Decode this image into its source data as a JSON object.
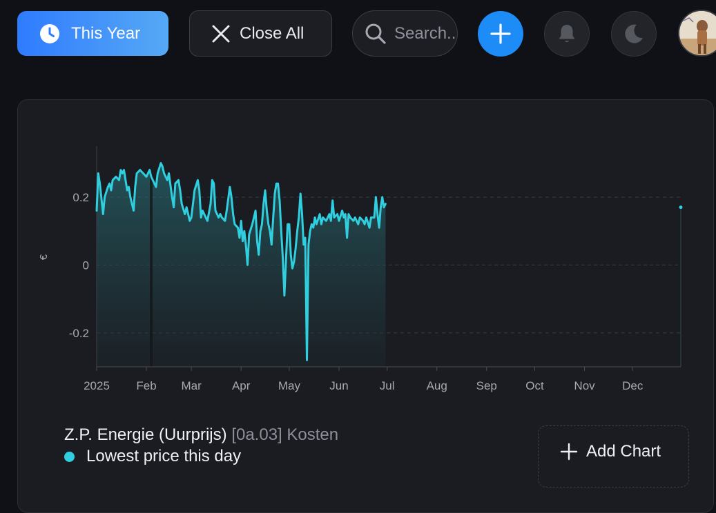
{
  "toolbar": {
    "period_label": "This Year",
    "close_all_label": "Close All",
    "search_placeholder": "Search..."
  },
  "icons": {
    "period": "clock-icon",
    "close": "close-icon",
    "search": "search-icon",
    "add": "plus-icon",
    "notifications": "bell-icon",
    "theme": "moon-icon",
    "user": "avatar"
  },
  "colors": {
    "primary": "#2f7bff",
    "series": "#2fcfdf",
    "background": "#101116",
    "card": "#1b1c21"
  },
  "chart_data": {
    "type": "area",
    "ylabel": "€",
    "yticks": [
      "0.2",
      "0",
      "-0.2"
    ],
    "xticks": [
      "2025",
      "Feb",
      "Mar",
      "Apr",
      "May",
      "Jun",
      "Jul",
      "Aug",
      "Sep",
      "Oct",
      "Nov",
      "Dec"
    ],
    "ylim": [
      -0.3,
      0.35
    ],
    "x_domain": [
      "2025-01-01",
      "2025-12-31"
    ],
    "grid": "horizontal dashed at ±0.2, solid at 0",
    "series": [
      {
        "name": "Lowest price this day",
        "color": "#2fcfdf",
        "points": [
          [
            "2025-01-01",
            0.16
          ],
          [
            "2025-01-02",
            0.27
          ],
          [
            "2025-01-03",
            0.24
          ],
          [
            "2025-01-05",
            0.15
          ],
          [
            "2025-01-06",
            0.2
          ],
          [
            "2025-01-08",
            0.23
          ],
          [
            "2025-01-09",
            0.24
          ],
          [
            "2025-01-10",
            0.22
          ],
          [
            "2025-01-11",
            0.25
          ],
          [
            "2025-01-13",
            0.26
          ],
          [
            "2025-01-15",
            0.25
          ],
          [
            "2025-01-16",
            0.28
          ],
          [
            "2025-01-17",
            0.27
          ],
          [
            "2025-01-18",
            0.28
          ],
          [
            "2025-01-20",
            0.22
          ],
          [
            "2025-01-21",
            0.23
          ],
          [
            "2025-01-22",
            0.2
          ],
          [
            "2025-01-24",
            0.16
          ],
          [
            "2025-01-25",
            0.23
          ],
          [
            "2025-01-26",
            0.27
          ],
          [
            "2025-01-28",
            0.28
          ],
          [
            "2025-01-30",
            0.27
          ],
          [
            "2025-02-01",
            0.26
          ],
          [
            "2025-02-03",
            0.28
          ],
          [
            "2025-02-04",
            0.26
          ],
          [
            "2025-02-05",
            0.25
          ],
          [
            "2025-02-07",
            0.23
          ],
          [
            "2025-02-08",
            0.27
          ],
          [
            "2025-02-10",
            0.3
          ],
          [
            "2025-02-11",
            0.29
          ],
          [
            "2025-02-12",
            0.27
          ],
          [
            "2025-02-14",
            0.25
          ],
          [
            "2025-02-15",
            0.27
          ],
          [
            "2025-02-17",
            0.2
          ],
          [
            "2025-02-18",
            0.17
          ],
          [
            "2025-02-19",
            0.24
          ],
          [
            "2025-02-21",
            0.25
          ],
          [
            "2025-02-22",
            0.22
          ],
          [
            "2025-02-23",
            0.18
          ],
          [
            "2025-02-25",
            0.15
          ],
          [
            "2025-02-26",
            0.17
          ],
          [
            "2025-02-28",
            0.13
          ],
          [
            "2025-03-01",
            0.14
          ],
          [
            "2025-03-03",
            0.22
          ],
          [
            "2025-03-05",
            0.25
          ],
          [
            "2025-03-06",
            0.22
          ],
          [
            "2025-03-07",
            0.14
          ],
          [
            "2025-03-08",
            0.16
          ],
          [
            "2025-03-10",
            0.14
          ],
          [
            "2025-03-11",
            0.13
          ],
          [
            "2025-03-13",
            0.18
          ],
          [
            "2025-03-14",
            0.25
          ],
          [
            "2025-03-15",
            0.24
          ],
          [
            "2025-03-16",
            0.16
          ],
          [
            "2025-03-18",
            0.14
          ],
          [
            "2025-03-19",
            0.15
          ],
          [
            "2025-03-20",
            0.14
          ],
          [
            "2025-03-22",
            0.13
          ],
          [
            "2025-03-23",
            0.16
          ],
          [
            "2025-03-25",
            0.23
          ],
          [
            "2025-03-26",
            0.2
          ],
          [
            "2025-03-27",
            0.15
          ],
          [
            "2025-03-28",
            0.12
          ],
          [
            "2025-03-30",
            0.11
          ],
          [
            "2025-03-31",
            0.08
          ],
          [
            "2025-04-01",
            0.13
          ],
          [
            "2025-04-02",
            0.07
          ],
          [
            "2025-04-03",
            0.1
          ],
          [
            "2025-04-04",
            0.06
          ],
          [
            "2025-04-05",
            0.0
          ],
          [
            "2025-04-06",
            0.09
          ],
          [
            "2025-04-08",
            0.12
          ],
          [
            "2025-04-09",
            0.14
          ],
          [
            "2025-04-10",
            0.16
          ],
          [
            "2025-04-11",
            0.07
          ],
          [
            "2025-04-12",
            0.03
          ],
          [
            "2025-04-13",
            0.1
          ],
          [
            "2025-04-14",
            0.12
          ],
          [
            "2025-04-15",
            0.18
          ],
          [
            "2025-04-16",
            0.22
          ],
          [
            "2025-04-17",
            0.16
          ],
          [
            "2025-04-18",
            0.12
          ],
          [
            "2025-04-19",
            0.1
          ],
          [
            "2025-04-20",
            0.06
          ],
          [
            "2025-04-21",
            0.14
          ],
          [
            "2025-04-22",
            0.21
          ],
          [
            "2025-04-23",
            0.24
          ],
          [
            "2025-04-24",
            0.24
          ],
          [
            "2025-04-25",
            0.19
          ],
          [
            "2025-04-26",
            0.1
          ],
          [
            "2025-04-27",
            0.02
          ],
          [
            "2025-04-28",
            -0.09
          ],
          [
            "2025-04-29",
            0.02
          ],
          [
            "2025-04-30",
            0.12
          ],
          [
            "2025-05-01",
            0.12
          ],
          [
            "2025-05-02",
            0.03
          ],
          [
            "2025-05-03",
            -0.01
          ],
          [
            "2025-05-04",
            0.01
          ],
          [
            "2025-05-05",
            0.05
          ],
          [
            "2025-05-06",
            0.1
          ],
          [
            "2025-05-07",
            0.14
          ],
          [
            "2025-05-08",
            0.21
          ],
          [
            "2025-05-09",
            0.15
          ],
          [
            "2025-05-10",
            0.06
          ],
          [
            "2025-05-11",
            0.08
          ],
          [
            "2025-05-12",
            -0.28
          ],
          [
            "2025-05-13",
            0.06
          ],
          [
            "2025-05-14",
            0.1
          ],
          [
            "2025-05-15",
            0.12
          ],
          [
            "2025-05-16",
            0.11
          ],
          [
            "2025-05-17",
            0.14
          ],
          [
            "2025-05-18",
            0.12
          ],
          [
            "2025-05-20",
            0.15
          ],
          [
            "2025-05-21",
            0.12
          ],
          [
            "2025-05-22",
            0.14
          ],
          [
            "2025-05-24",
            0.13
          ],
          [
            "2025-05-26",
            0.15
          ],
          [
            "2025-05-27",
            0.13
          ],
          [
            "2025-05-28",
            0.19
          ],
          [
            "2025-05-29",
            0.14
          ],
          [
            "2025-05-31",
            0.15
          ],
          [
            "2025-06-01",
            0.13
          ],
          [
            "2025-06-03",
            0.16
          ],
          [
            "2025-06-04",
            0.14
          ],
          [
            "2025-06-05",
            0.15
          ],
          [
            "2025-06-06",
            0.08
          ],
          [
            "2025-06-07",
            0.15
          ],
          [
            "2025-06-08",
            0.14
          ],
          [
            "2025-06-10",
            0.13
          ],
          [
            "2025-06-11",
            0.14
          ],
          [
            "2025-06-13",
            0.12
          ],
          [
            "2025-06-14",
            0.14
          ],
          [
            "2025-06-16",
            0.13
          ],
          [
            "2025-06-17",
            0.12
          ],
          [
            "2025-06-18",
            0.14
          ],
          [
            "2025-06-20",
            0.11
          ],
          [
            "2025-06-21",
            0.14
          ],
          [
            "2025-06-23",
            0.14
          ],
          [
            "2025-06-24",
            0.2
          ],
          [
            "2025-06-25",
            0.15
          ],
          [
            "2025-06-26",
            0.11
          ],
          [
            "2025-06-27",
            0.17
          ],
          [
            "2025-06-28",
            0.2
          ],
          [
            "2025-06-29",
            0.17
          ],
          [
            "2025-06-30",
            0.18
          ]
        ],
        "last_point": [
          "2025-12-31",
          0.17
        ]
      }
    ]
  },
  "legend": {
    "entity": "Z.P. Energie (Uurprijs)",
    "subtitle": "[0a.03] Kosten",
    "series_label": "Lowest price this day"
  },
  "actions": {
    "add_chart_label": "Add Chart"
  }
}
